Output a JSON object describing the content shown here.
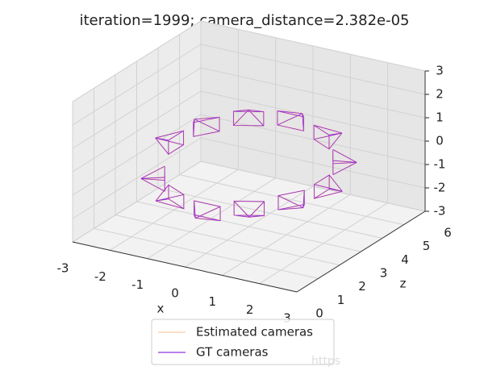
{
  "chart_data": {
    "type": "scatter3d",
    "title": "iteration=1999; camera_distance=2.382e-05",
    "xlabel": "x",
    "zlabel": "z",
    "xlim": [
      -3,
      3
    ],
    "ylim": [
      -3,
      3
    ],
    "zlim": [
      0,
      6
    ],
    "xticks": [
      -3,
      -2,
      -1,
      0,
      1,
      2,
      3
    ],
    "yticks": [
      -3,
      -2,
      -1,
      0,
      1,
      2,
      3
    ],
    "zticks": [
      0,
      1,
      2,
      3,
      4,
      5,
      6
    ],
    "grid": true,
    "legend": "lower center",
    "series": [
      {
        "name": "Estimated cameras",
        "color": "#ffc8a0",
        "x": [
          2.5,
          2.17,
          1.25,
          0,
          -1.25,
          -2.17,
          -2.5,
          -2.17,
          -1.25,
          0,
          1.25,
          2.17
        ],
        "y": [
          -0.6,
          -0.2,
          0.2,
          0.4,
          0.3,
          0.1,
          -0.1,
          -1.0,
          -1.1,
          -1.2,
          -0.9,
          -0.7
        ],
        "z": [
          3,
          4.25,
          5.17,
          5.5,
          5.17,
          4.25,
          3,
          1.75,
          0.83,
          0.5,
          0.83,
          1.75
        ]
      },
      {
        "name": "GT cameras",
        "color": "#8a2be2",
        "x": [
          2.5,
          2.17,
          1.25,
          0,
          -1.25,
          -2.17,
          -2.5,
          -2.17,
          -1.25,
          0,
          1.25,
          2.17
        ],
        "y": [
          -0.6,
          -0.2,
          0.2,
          0.4,
          0.3,
          0.1,
          -0.1,
          -1.0,
          -1.1,
          -1.2,
          -0.9,
          -0.7
        ],
        "z": [
          3,
          4.25,
          5.17,
          5.5,
          5.17,
          4.25,
          3,
          1.75,
          0.83,
          0.5,
          0.83,
          1.75
        ]
      }
    ],
    "watermark": "https"
  }
}
